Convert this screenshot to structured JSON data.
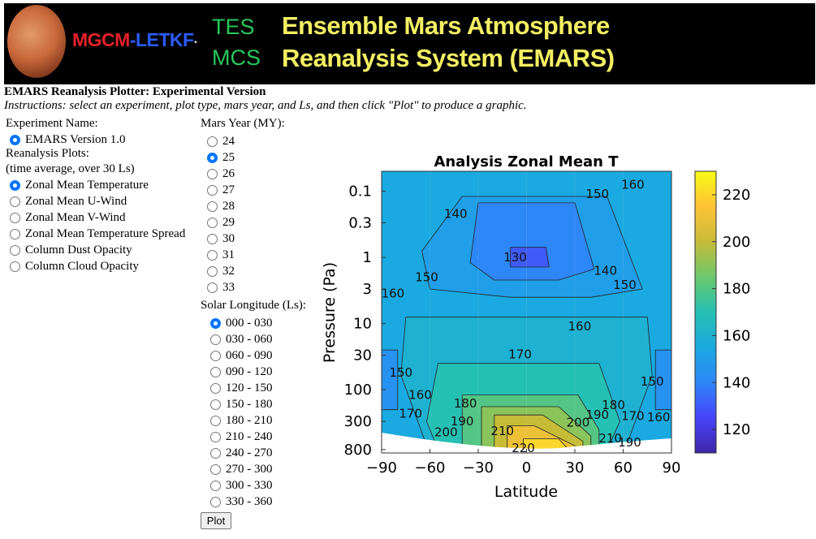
{
  "banner": {
    "logo_red": "MGCM",
    "logo_blue": "-LETKF",
    "logo_dot": "·",
    "tes": "TES",
    "mcs": "MCS",
    "title_line1": "Ensemble Mars Atmosphere",
    "title_line2": "Reanalysis System (EMARS)"
  },
  "heading": "EMARS Reanalysis Plotter: Experimental Version",
  "instructions": "Instructions: select an experiment, plot type, mars year, and Ls, and then click \"Plot\" to produce a graphic.",
  "experiment": {
    "label": "Experiment Name:",
    "options": [
      {
        "label": "EMARS Version 1.0",
        "checked": true
      }
    ]
  },
  "reanalysis": {
    "label": "Reanalysis Plots:",
    "sublabel": "(time average, over 30 Ls)",
    "options": [
      {
        "label": "Zonal Mean Temperature",
        "checked": true
      },
      {
        "label": "Zonal Mean U-Wind",
        "checked": false
      },
      {
        "label": "Zonal Mean V-Wind",
        "checked": false
      },
      {
        "label": "Zonal Mean Temperature Spread",
        "checked": false
      },
      {
        "label": "Column Dust Opacity",
        "checked": false
      },
      {
        "label": "Column Cloud Opacity",
        "checked": false
      }
    ]
  },
  "mars_year": {
    "label": "Mars Year (MY):",
    "options": [
      {
        "label": "24",
        "checked": false
      },
      {
        "label": "25",
        "checked": true
      },
      {
        "label": "26",
        "checked": false
      },
      {
        "label": "27",
        "checked": false
      },
      {
        "label": "28",
        "checked": false
      },
      {
        "label": "29",
        "checked": false
      },
      {
        "label": "30",
        "checked": false
      },
      {
        "label": "31",
        "checked": false
      },
      {
        "label": "32",
        "checked": false
      },
      {
        "label": "33",
        "checked": false
      }
    ]
  },
  "solar_longitude": {
    "label": "Solar Longitude (Ls):",
    "options": [
      {
        "label": "000 - 030",
        "checked": true
      },
      {
        "label": "030 - 060",
        "checked": false
      },
      {
        "label": "060 - 090",
        "checked": false
      },
      {
        "label": "090 - 120",
        "checked": false
      },
      {
        "label": "120 - 150",
        "checked": false
      },
      {
        "label": "150 - 180",
        "checked": false
      },
      {
        "label": "180 - 210",
        "checked": false
      },
      {
        "label": "210 - 240",
        "checked": false
      },
      {
        "label": "240 - 270",
        "checked": false
      },
      {
        "label": "270 - 300",
        "checked": false
      },
      {
        "label": "300 - 330",
        "checked": false
      },
      {
        "label": "330 - 360",
        "checked": false
      }
    ]
  },
  "plot_button": "Plot",
  "chart_data": {
    "type": "heatmap",
    "title": "Analysis Zonal Mean T",
    "xlabel": "Latitude",
    "ylabel": "Pressure (Pa)",
    "x_ticks": [
      "−90",
      "−60",
      "−30",
      "0",
      "30",
      "60",
      "90"
    ],
    "x_tick_values": [
      -90,
      -60,
      -30,
      0,
      30,
      60,
      90
    ],
    "y_ticks": [
      "0.1",
      "0.3",
      "1",
      "3",
      "10",
      "30",
      "100",
      "300",
      "800"
    ],
    "y_tick_values": [
      0.1,
      0.3,
      1,
      3,
      10,
      30,
      100,
      300,
      800
    ],
    "y_scale": "log",
    "y_reversed": true,
    "xlim": [
      -90,
      90
    ],
    "ylim": [
      0.05,
      900
    ],
    "colorbar": {
      "ticks": [
        "220",
        "200",
        "180",
        "160",
        "140",
        "120"
      ],
      "tick_values": [
        220,
        200,
        180,
        160,
        140,
        120
      ],
      "range": [
        110,
        230
      ],
      "colors": [
        "#3e26a8",
        "#4743f8",
        "#2e87f7",
        "#1aa9e0",
        "#25c0b4",
        "#6cc86d",
        "#c7bc38",
        "#fec338",
        "#f9fb15"
      ]
    },
    "regions": [
      {
        "level": 155,
        "points": [
          [
            -90,
            0.05
          ],
          [
            90,
            0.05
          ],
          [
            90,
            800
          ],
          [
            -90,
            800
          ]
        ]
      },
      {
        "level": 150,
        "points": [
          [
            -40,
            0.12
          ],
          [
            50,
            0.12
          ],
          [
            72,
            3
          ],
          [
            40,
            4
          ],
          [
            -10,
            4
          ],
          [
            -60,
            3
          ],
          [
            -65,
            0.8
          ]
        ]
      },
      {
        "level": 140,
        "points": [
          [
            -30,
            0.15
          ],
          [
            30,
            0.15
          ],
          [
            42,
            1.5
          ],
          [
            20,
            2.2
          ],
          [
            -20,
            2.2
          ],
          [
            -35,
            1.2
          ]
        ]
      },
      {
        "level": 130,
        "points": [
          [
            -10,
            0.7
          ],
          [
            12,
            0.7
          ],
          [
            14,
            1.4
          ],
          [
            -10,
            1.4
          ]
        ]
      },
      {
        "level": 160,
        "points": [
          [
            -75,
            8
          ],
          [
            75,
            8
          ],
          [
            78,
            60
          ],
          [
            62,
            700
          ],
          [
            -62,
            700
          ],
          [
            -78,
            60
          ]
        ]
      },
      {
        "level": 145,
        "points": [
          [
            -90,
            25
          ],
          [
            -80,
            25
          ],
          [
            -80,
            200
          ],
          [
            -90,
            200
          ]
        ]
      },
      {
        "level": 145,
        "points": [
          [
            80,
            25
          ],
          [
            90,
            25
          ],
          [
            90,
            200
          ],
          [
            80,
            200
          ]
        ]
      },
      {
        "level": 170,
        "points": [
          [
            -55,
            40
          ],
          [
            45,
            40
          ],
          [
            58,
            300
          ],
          [
            50,
            800
          ],
          [
            -55,
            800
          ],
          [
            -62,
            300
          ]
        ]
      },
      {
        "level": 180,
        "points": [
          [
            -40,
            120
          ],
          [
            32,
            120
          ],
          [
            45,
            400
          ],
          [
            45,
            800
          ],
          [
            -40,
            800
          ]
        ]
      },
      {
        "level": 190,
        "points": [
          [
            -28,
            180
          ],
          [
            20,
            180
          ],
          [
            40,
            500
          ],
          [
            40,
            800
          ],
          [
            -28,
            800
          ]
        ]
      },
      {
        "level": 200,
        "points": [
          [
            -20,
            240
          ],
          [
            10,
            240
          ],
          [
            35,
            600
          ],
          [
            35,
            800
          ],
          [
            -20,
            800
          ]
        ]
      },
      {
        "level": 210,
        "points": [
          [
            -12,
            350
          ],
          [
            5,
            350
          ],
          [
            30,
            700
          ],
          [
            30,
            800
          ],
          [
            -12,
            800
          ]
        ]
      },
      {
        "level": 220,
        "points": [
          [
            -2,
            550
          ],
          [
            20,
            550
          ],
          [
            26,
            800
          ],
          [
            -2,
            800
          ]
        ]
      }
    ],
    "contour_labels": [
      {
        "text": "160",
        "lat": 66,
        "p": 0.08
      },
      {
        "text": "150",
        "lat": 44,
        "p": 0.11
      },
      {
        "text": "140",
        "lat": -44,
        "p": 0.22
      },
      {
        "text": "130",
        "lat": -7,
        "p": 1.0
      },
      {
        "text": "140",
        "lat": 49,
        "p": 1.6
      },
      {
        "text": "150",
        "lat": -62,
        "p": 2.0
      },
      {
        "text": "150",
        "lat": 61,
        "p": 2.6
      },
      {
        "text": "160",
        "lat": -83,
        "p": 3.5
      },
      {
        "text": "160",
        "lat": 33,
        "p": 11
      },
      {
        "text": "170",
        "lat": -4,
        "p": 29
      },
      {
        "text": "150",
        "lat": -78,
        "p": 55
      },
      {
        "text": "150",
        "lat": 78,
        "p": 75
      },
      {
        "text": "170",
        "lat": -72,
        "p": 230
      },
      {
        "text": "160",
        "lat": -66,
        "p": 120
      },
      {
        "text": "180",
        "lat": -38,
        "p": 160
      },
      {
        "text": "200",
        "lat": -50,
        "p": 440
      },
      {
        "text": "190",
        "lat": -40,
        "p": 300
      },
      {
        "text": "210",
        "lat": -15,
        "p": 420
      },
      {
        "text": "220",
        "lat": -2,
        "p": 760
      },
      {
        "text": "200",
        "lat": 32,
        "p": 310
      },
      {
        "text": "190",
        "lat": 44,
        "p": 240
      },
      {
        "text": "180",
        "lat": 54,
        "p": 170
      },
      {
        "text": "170",
        "lat": 66,
        "p": 250
      },
      {
        "text": "160",
        "lat": 82,
        "p": 260
      },
      {
        "text": "210",
        "lat": 52,
        "p": 540
      },
      {
        "text": "190",
        "lat": 64,
        "p": 620
      }
    ]
  }
}
